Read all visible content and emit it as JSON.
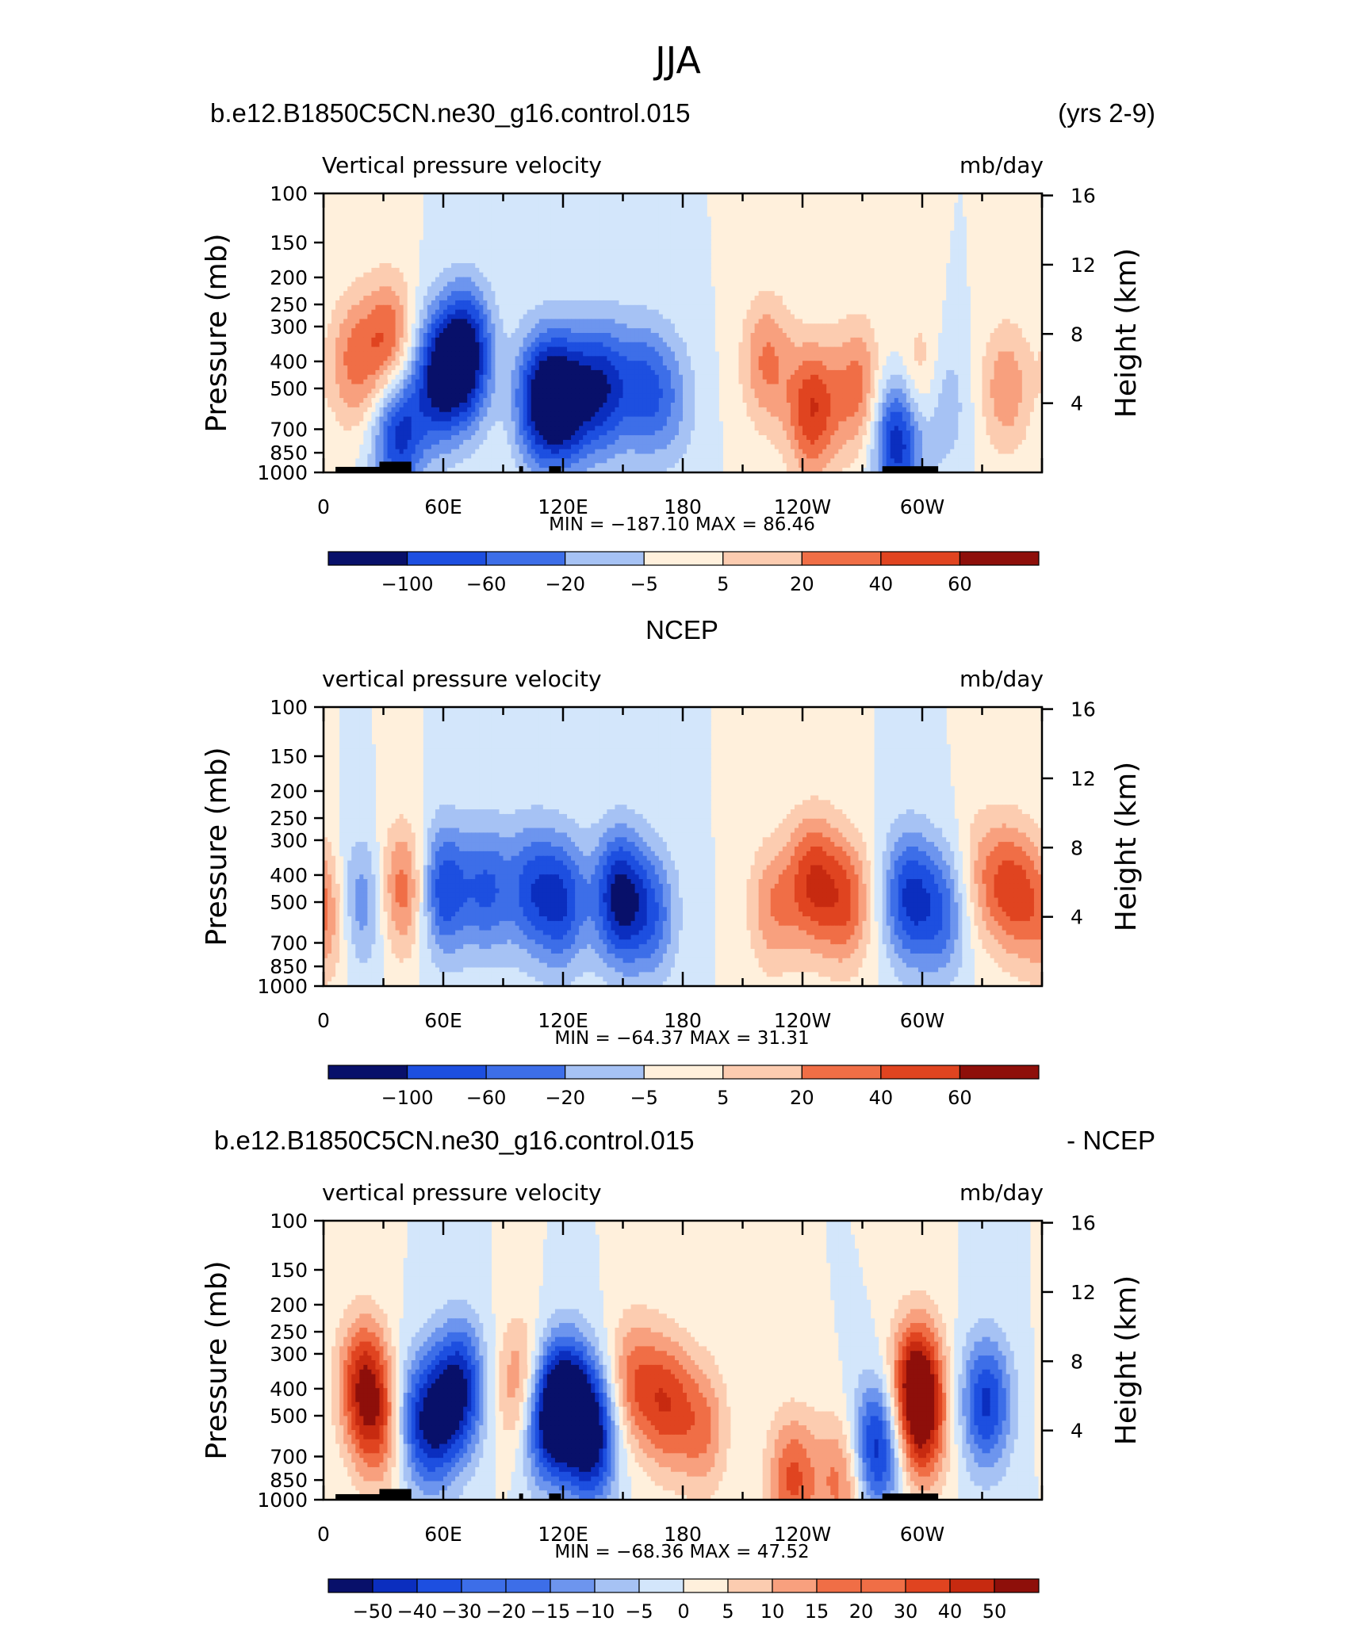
{
  "figure": {
    "title": "JJA"
  },
  "palettes": {
    "main": [
      "#08106a",
      "#0b2ebf",
      "#1d4fe0",
      "#3d6ee8",
      "#6d95ee",
      "#a6c2f4",
      "#d3e6fb",
      "#fff0dc",
      "#fcccb0",
      "#f8a07e",
      "#f06e46",
      "#e04420",
      "#c72a10",
      "#8e0f0a"
    ],
    "diff": [
      "#08106a",
      "#0b2ebf",
      "#1d4fe0",
      "#3d6ee8",
      "#6d95ee",
      "#a6c2f4",
      "#d3e6fb",
      "#fff0dc",
      "#fcccb0",
      "#f8a07e",
      "#f06e46",
      "#e04420",
      "#c72a10",
      "#8e0f0a"
    ]
  },
  "chart_data": [
    {
      "type": "heatmap",
      "case_label": "b.e12.B1850C5CN.ne30_g16.control.015",
      "right_label": "(yrs 2-9)",
      "title": "",
      "variable": "Vertical pressure velocity",
      "units": "mb/day",
      "ylabel": "Pressure (mb)",
      "y2label": "Height (km)",
      "xticks": [
        "0",
        "60E",
        "120E",
        "180",
        "120W",
        "60W"
      ],
      "yticks": [
        "100",
        "150",
        "200",
        "250",
        "300",
        "400",
        "500",
        "700",
        "850",
        "1000"
      ],
      "y2ticks": [
        "16",
        "12",
        "8",
        "4"
      ],
      "stats": "MIN =  −187.10   MAX =   86.46",
      "colorbar_labels": [
        "−100",
        "−60",
        "−20",
        "−5",
        "5",
        "20",
        "40",
        "60"
      ],
      "palette": "main",
      "topography": true,
      "features": [
        [
          -0.35,
          40,
          650
        ],
        [
          0.45,
          15,
          400
        ],
        [
          0.6,
          33,
          350
        ],
        [
          -0.5,
          36,
          750
        ],
        [
          -0.95,
          72,
          380
        ],
        [
          -0.85,
          58,
          450
        ],
        [
          -0.85,
          108,
          550
        ],
        [
          -0.9,
          122,
          550
        ],
        [
          -0.75,
          140,
          500
        ],
        [
          -0.55,
          160,
          500
        ],
        [
          -0.3,
          175,
          550
        ],
        [
          0.7,
          245,
          600
        ],
        [
          0.45,
          222,
          400
        ],
        [
          0.5,
          268,
          500
        ],
        [
          0.55,
          300,
          500
        ],
        [
          -0.9,
          288,
          750
        ],
        [
          -0.45,
          308,
          550
        ],
        [
          0.4,
          342,
          500
        ]
      ]
    },
    {
      "type": "heatmap",
      "case_label": "",
      "right_label": "",
      "title": "NCEP",
      "variable": "vertical pressure velocity",
      "units": "mb/day",
      "ylabel": "Pressure (mb)",
      "y2label": "Height (km)",
      "xticks": [
        "0",
        "60E",
        "120E",
        "180",
        "120W",
        "60W"
      ],
      "yticks": [
        "100",
        "150",
        "200",
        "250",
        "300",
        "400",
        "500",
        "700",
        "850",
        "1000"
      ],
      "y2ticks": [
        "16",
        "12",
        "8",
        "4"
      ],
      "stats": "MIN =  −64.37   MAX =   31.31",
      "colorbar_labels": [
        "−100",
        "−60",
        "−20",
        "−5",
        "5",
        "20",
        "40",
        "60"
      ],
      "palette": "main",
      "topography": false,
      "features": [
        [
          0.45,
          2,
          550
        ],
        [
          -0.45,
          18,
          500
        ],
        [
          0.55,
          40,
          450
        ],
        [
          -0.7,
          60,
          450
        ],
        [
          -0.55,
          82,
          450
        ],
        [
          -0.55,
          104,
          450
        ],
        [
          -0.65,
          120,
          500
        ],
        [
          -0.9,
          148,
          480
        ],
        [
          -0.5,
          165,
          550
        ],
        [
          0.65,
          245,
          420
        ],
        [
          0.4,
          225,
          520
        ],
        [
          0.55,
          262,
          500
        ],
        [
          -0.7,
          293,
          480
        ],
        [
          -0.5,
          310,
          550
        ],
        [
          0.55,
          345,
          450
        ],
        [
          0.3,
          330,
          400
        ]
      ]
    },
    {
      "type": "heatmap",
      "case_label": "b.e12.B1850C5CN.ne30_g16.control.015",
      "right_label": "- NCEP",
      "title": "",
      "variable": "vertical pressure velocity",
      "units": "mb/day",
      "ylabel": "Pressure (mb)",
      "y2label": "Height (km)",
      "xticks": [
        "0",
        "60E",
        "120E",
        "180",
        "120W",
        "60W"
      ],
      "yticks": [
        "100",
        "150",
        "200",
        "250",
        "300",
        "400",
        "500",
        "700",
        "850",
        "1000"
      ],
      "y2ticks": [
        "16",
        "12",
        "8",
        "4"
      ],
      "stats": "MIN =  −68.36   MAX =   47.52",
      "colorbar_labels": [
        "−50",
        "−40",
        "−30",
        "−20",
        "−15",
        "−10",
        "−5",
        "0",
        "5",
        "10",
        "15",
        "20",
        "30",
        "40",
        "50"
      ],
      "palette": "diff",
      "topography": true,
      "features": [
        [
          0.75,
          20,
          380
        ],
        [
          0.5,
          28,
          550
        ],
        [
          -0.4,
          45,
          500
        ],
        [
          -0.85,
          68,
          400
        ],
        [
          -0.6,
          55,
          550
        ],
        [
          0.6,
          100,
          400
        ],
        [
          -0.85,
          110,
          500
        ],
        [
          -0.95,
          122,
          450
        ],
        [
          -0.9,
          135,
          600
        ],
        [
          0.5,
          155,
          380
        ],
        [
          0.6,
          172,
          450
        ],
        [
          0.45,
          190,
          550
        ],
        [
          0.6,
          235,
          850
        ],
        [
          0.5,
          260,
          850
        ],
        [
          -0.85,
          277,
          650
        ],
        [
          0.9,
          297,
          380
        ],
        [
          0.6,
          300,
          550
        ],
        [
          -0.75,
          332,
          450
        ]
      ]
    }
  ]
}
